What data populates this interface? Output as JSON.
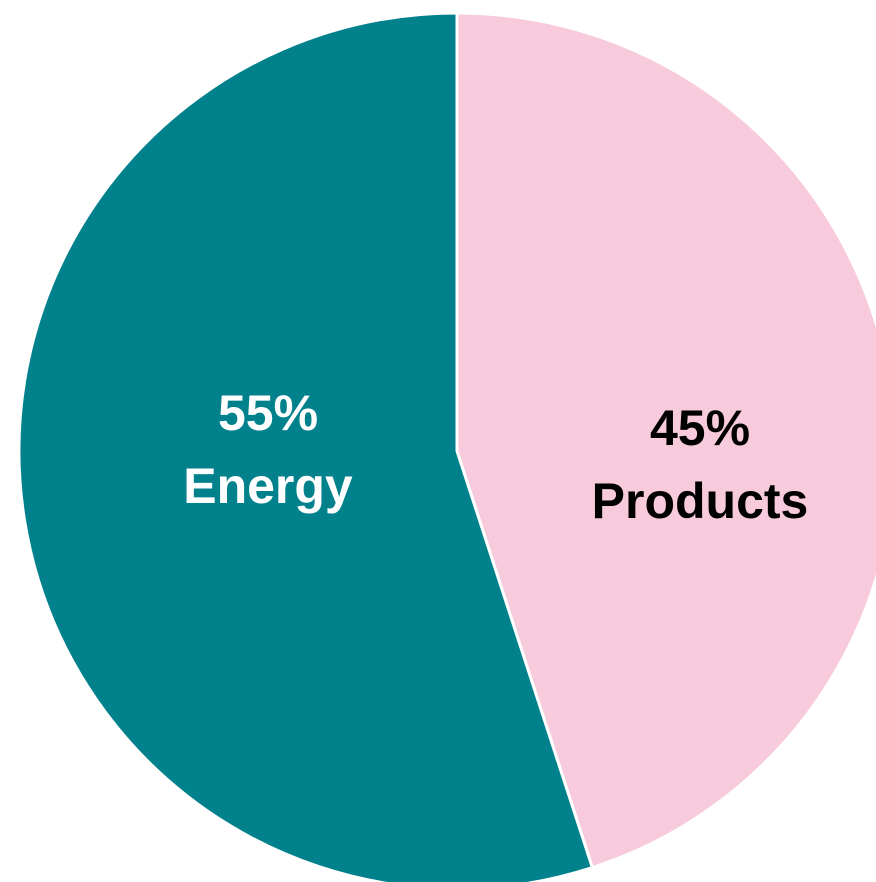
{
  "chart_data": {
    "type": "pie",
    "start_angle_deg": 0,
    "direction": "clockwise",
    "slices": [
      {
        "label": "Products",
        "value": 45,
        "value_text": "45%",
        "color": "#F7CADC",
        "label_color": "#000000"
      },
      {
        "label": "Energy",
        "value": 55,
        "value_text": "55%",
        "color": "#00818C",
        "label_color": "#FFFFFF"
      }
    ],
    "legend": "none"
  }
}
